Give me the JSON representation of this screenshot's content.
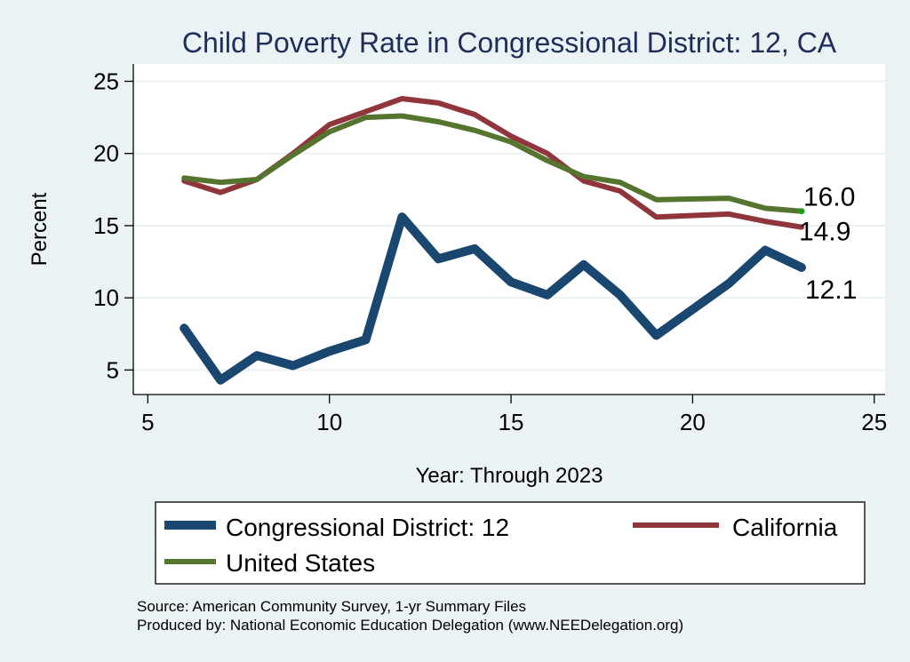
{
  "chart_data": {
    "type": "line",
    "title": "Child Poverty Rate in Congressional District:  12, CA",
    "xlabel": "Year: Through 2023",
    "ylabel": "Percent",
    "xlim": [
      4.6,
      25.3
    ],
    "ylim": [
      3.3,
      26.2
    ],
    "xticks": [
      5,
      10,
      15,
      20,
      25
    ],
    "yticks": [
      5,
      10,
      15,
      20,
      25
    ],
    "grid": "horizontal",
    "legend_position": "bottom",
    "series": [
      {
        "name": "Congressional District:  12",
        "color": "#1a476f",
        "x": [
          6,
          7,
          8,
          9,
          10,
          11,
          12,
          13,
          14,
          15,
          16,
          17,
          18,
          19,
          21,
          22,
          23
        ],
        "values": [
          7.9,
          4.3,
          6.0,
          5.3,
          6.3,
          7.1,
          15.6,
          12.7,
          13.4,
          11.1,
          10.2,
          12.3,
          10.2,
          7.4,
          11.0,
          13.3,
          12.1
        ],
        "end_label": "12.1"
      },
      {
        "name": "California",
        "color": "#90353b",
        "x": [
          6,
          7,
          8,
          9,
          10,
          11,
          12,
          13,
          14,
          15,
          16,
          17,
          18,
          19,
          21,
          22,
          23
        ],
        "values": [
          18.1,
          17.3,
          18.2,
          20.0,
          22.0,
          22.9,
          23.8,
          23.5,
          22.7,
          21.2,
          20.0,
          18.1,
          17.4,
          15.6,
          15.8,
          15.3,
          14.9
        ],
        "end_label": "14.9"
      },
      {
        "name": "United States",
        "color": "#55752f",
        "x": [
          6,
          7,
          8,
          9,
          10,
          11,
          12,
          13,
          14,
          15,
          16,
          17,
          18,
          19,
          21,
          22,
          23
        ],
        "values": [
          18.3,
          18.0,
          18.2,
          19.9,
          21.5,
          22.5,
          22.6,
          22.2,
          21.6,
          20.8,
          19.5,
          18.4,
          18.0,
          16.8,
          16.9,
          16.2,
          16.0
        ],
        "end_label": "16.0"
      }
    ],
    "notes": [
      "Source: American Community Survey, 1-yr Summary Files",
      "Produced by: National Economic Education Delegation (www.NEEDelegation.org)"
    ]
  },
  "colors": {
    "background": "#eaf2f3",
    "plot_background": "#ffffff",
    "gridline": "#eaf2f3",
    "title": "#1e2d5a",
    "end_marker_us": "#1a9c1a"
  }
}
